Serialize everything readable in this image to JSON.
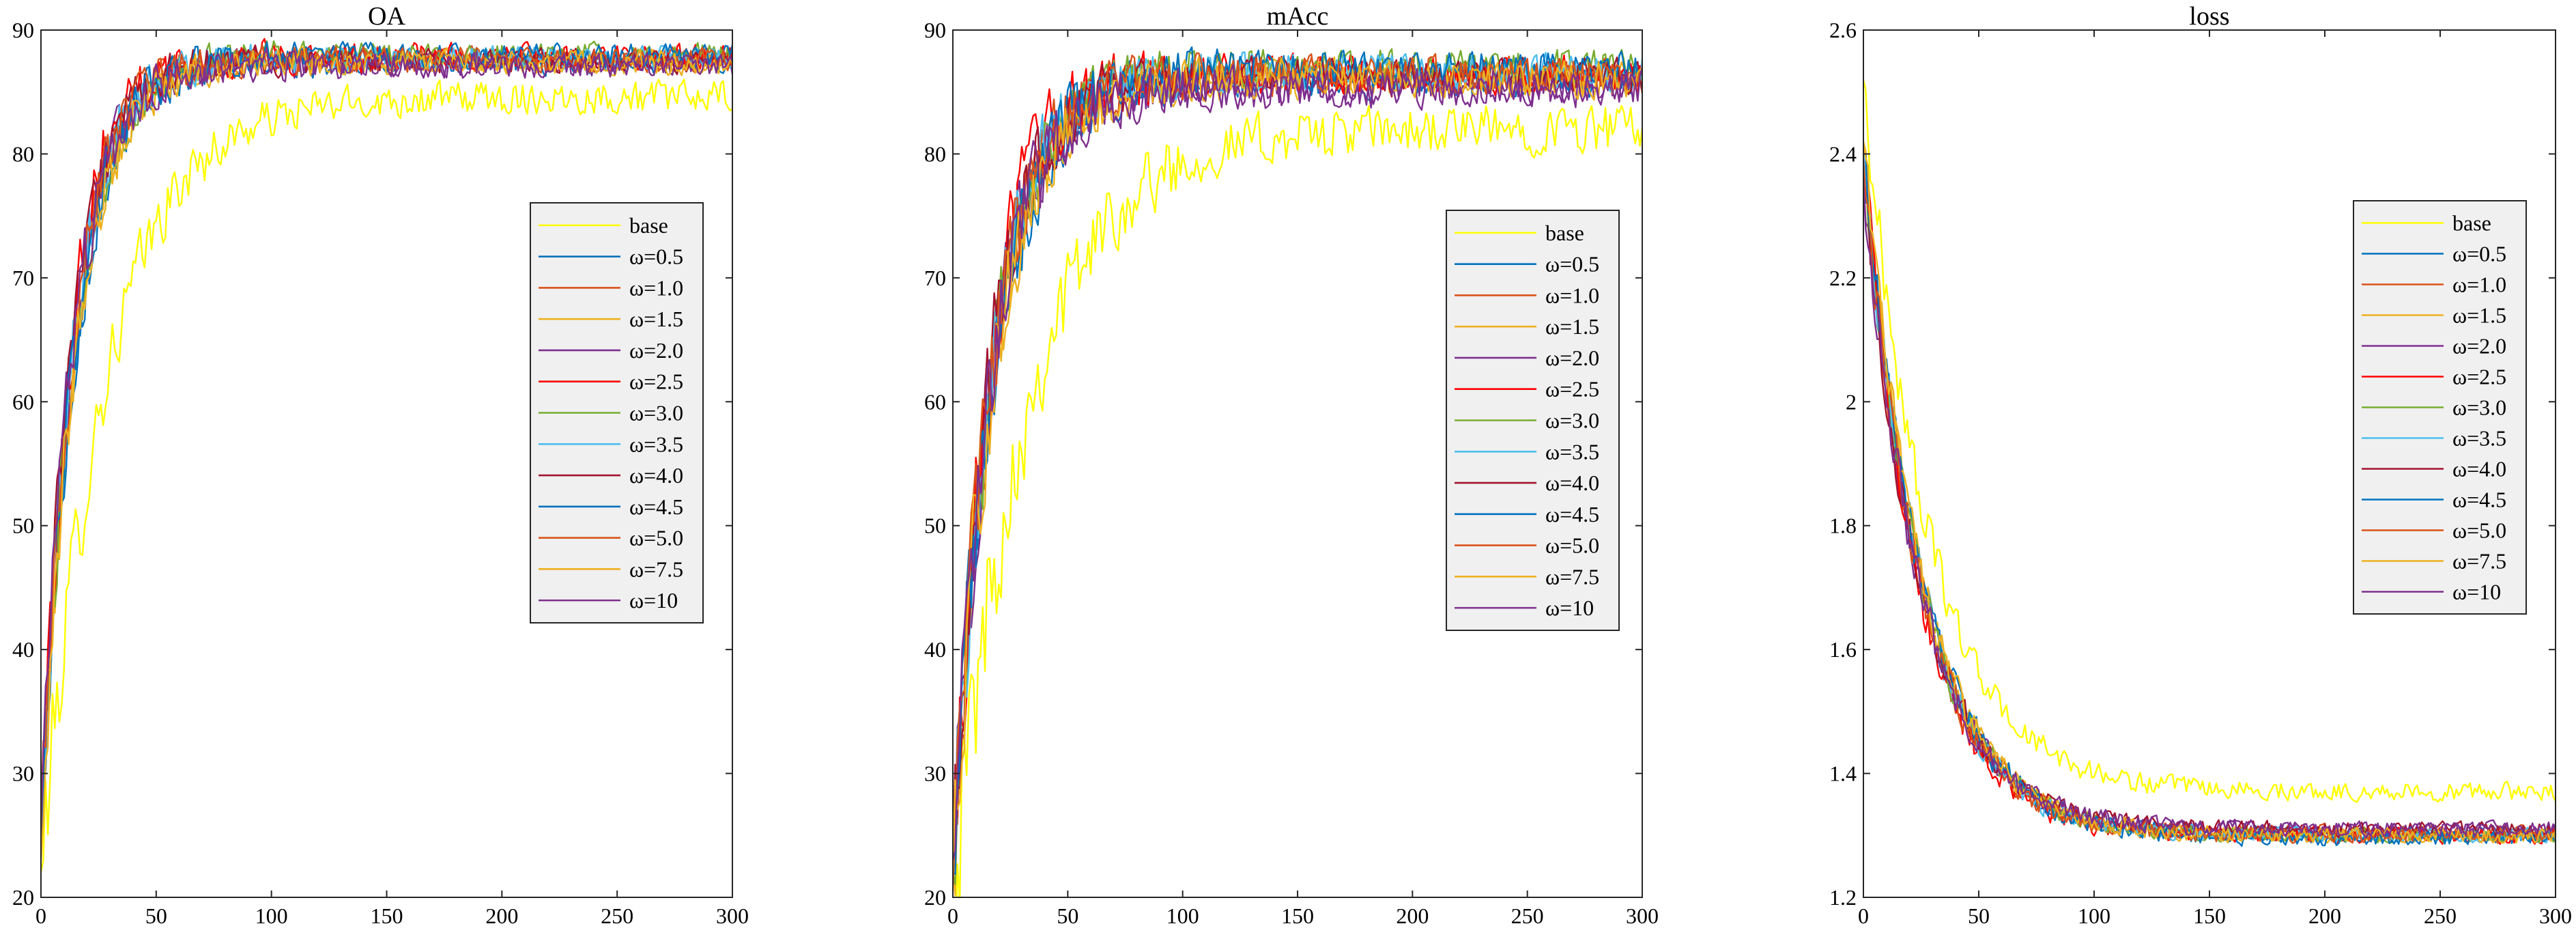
{
  "chart_data": [
    {
      "type": "line",
      "title": "OA",
      "xlabel": "",
      "ylabel": "",
      "xlim": [
        0,
        300
      ],
      "ylim": [
        20,
        90
      ],
      "xticks": [
        "0",
        "50",
        "100",
        "150",
        "200",
        "250",
        "300"
      ],
      "yticks": [
        "20",
        "30",
        "40",
        "50",
        "60",
        "70",
        "80",
        "90"
      ],
      "grid": false,
      "legend_position": "center-right",
      "series": [
        {
          "name": "base",
          "color": "#FFFF00",
          "noise": 1.6,
          "start": 22,
          "plateau": 84.6,
          "tau": 28,
          "epochs": 300
        },
        {
          "name": "ω=0.5",
          "color": "#0072BD",
          "noise": 1.2,
          "start": 24,
          "plateau": 87.4,
          "tau": 15,
          "epochs": 300
        },
        {
          "name": "ω=1.0",
          "color": "#D95319",
          "noise": 1.2,
          "start": 25,
          "plateau": 87.6,
          "tau": 14,
          "epochs": 300
        },
        {
          "name": "ω=1.5",
          "color": "#EDB120",
          "noise": 1.2,
          "start": 23,
          "plateau": 87.5,
          "tau": 15,
          "epochs": 300
        },
        {
          "name": "ω=2.0",
          "color": "#7E2F8E",
          "noise": 1.2,
          "start": 26,
          "plateau": 87.2,
          "tau": 14,
          "epochs": 300
        },
        {
          "name": "ω=2.5",
          "color": "#FF0000",
          "noise": 1.3,
          "start": 24,
          "plateau": 87.8,
          "tau": 13,
          "epochs": 300
        },
        {
          "name": "ω=3.0",
          "color": "#77AC30",
          "noise": 1.2,
          "start": 25,
          "plateau": 88.0,
          "tau": 15,
          "epochs": 300
        },
        {
          "name": "ω=3.5",
          "color": "#4DBEEE",
          "noise": 1.2,
          "start": 24,
          "plateau": 87.7,
          "tau": 14,
          "epochs": 300
        },
        {
          "name": "ω=4.0",
          "color": "#A2142F",
          "noise": 1.2,
          "start": 27,
          "plateau": 87.5,
          "tau": 14,
          "epochs": 300
        },
        {
          "name": "ω=4.5",
          "color": "#0072BD",
          "noise": 1.2,
          "start": 24,
          "plateau": 87.9,
          "tau": 15,
          "epochs": 300
        },
        {
          "name": "ω=5.0",
          "color": "#D95319",
          "noise": 1.2,
          "start": 25,
          "plateau": 87.6,
          "tau": 14,
          "epochs": 300
        },
        {
          "name": "ω=7.5",
          "color": "#EDB120",
          "noise": 1.2,
          "start": 23,
          "plateau": 87.4,
          "tau": 15,
          "epochs": 300
        },
        {
          "name": "ω=10",
          "color": "#7E2F8E",
          "noise": 1.2,
          "start": 26,
          "plateau": 87.1,
          "tau": 14,
          "epochs": 300
        }
      ]
    },
    {
      "type": "line",
      "title": "mAcc",
      "xlabel": "",
      "ylabel": "",
      "xlim": [
        0,
        300
      ],
      "ylim": [
        20,
        90
      ],
      "xticks": [
        "0",
        "50",
        "100",
        "150",
        "200",
        "250",
        "300"
      ],
      "yticks": [
        "20",
        "30",
        "40",
        "50",
        "60",
        "70",
        "80",
        "90"
      ],
      "grid": false,
      "legend_position": "center-right",
      "series": [
        {
          "name": "base",
          "color": "#FFFF00",
          "noise": 2.4,
          "start": 20,
          "plateau": 82.0,
          "tau": 32,
          "epochs": 300
        },
        {
          "name": "ω=0.5",
          "color": "#0072BD",
          "noise": 1.8,
          "start": 22,
          "plateau": 86.0,
          "tau": 18,
          "epochs": 300
        },
        {
          "name": "ω=1.0",
          "color": "#D95319",
          "noise": 1.8,
          "start": 21,
          "plateau": 86.3,
          "tau": 17,
          "epochs": 300
        },
        {
          "name": "ω=1.5",
          "color": "#EDB120",
          "noise": 1.8,
          "start": 22,
          "plateau": 86.1,
          "tau": 18,
          "epochs": 300
        },
        {
          "name": "ω=2.0",
          "color": "#7E2F8E",
          "noise": 1.8,
          "start": 23,
          "plateau": 85.2,
          "tau": 17,
          "epochs": 300
        },
        {
          "name": "ω=2.5",
          "color": "#FF0000",
          "noise": 1.9,
          "start": 21,
          "plateau": 86.5,
          "tau": 16,
          "epochs": 300
        },
        {
          "name": "ω=3.0",
          "color": "#77AC30",
          "noise": 1.8,
          "start": 22,
          "plateau": 87.0,
          "tau": 18,
          "epochs": 300
        },
        {
          "name": "ω=3.5",
          "color": "#4DBEEE",
          "noise": 1.8,
          "start": 22,
          "plateau": 86.6,
          "tau": 17,
          "epochs": 300
        },
        {
          "name": "ω=4.0",
          "color": "#A2142F",
          "noise": 1.8,
          "start": 24,
          "plateau": 86.2,
          "tau": 17,
          "epochs": 300
        },
        {
          "name": "ω=4.5",
          "color": "#0072BD",
          "noise": 1.8,
          "start": 22,
          "plateau": 86.8,
          "tau": 18,
          "epochs": 300
        },
        {
          "name": "ω=5.0",
          "color": "#D95319",
          "noise": 1.8,
          "start": 21,
          "plateau": 86.4,
          "tau": 17,
          "epochs": 300
        },
        {
          "name": "ω=7.5",
          "color": "#EDB120",
          "noise": 1.8,
          "start": 22,
          "plateau": 86.0,
          "tau": 18,
          "epochs": 300
        },
        {
          "name": "ω=10",
          "color": "#7E2F8E",
          "noise": 1.8,
          "start": 23,
          "plateau": 85.5,
          "tau": 17,
          "epochs": 300
        }
      ]
    },
    {
      "type": "line",
      "title": "loss",
      "xlabel": "",
      "ylabel": "",
      "xlim": [
        0,
        300
      ],
      "ylim": [
        1.2,
        2.6
      ],
      "xticks": [
        "0",
        "50",
        "100",
        "150",
        "200",
        "250",
        "300"
      ],
      "yticks": [
        "1.2",
        "1.4",
        "1.6",
        "1.8",
        "2",
        "2.2",
        "2.4",
        "2.6"
      ],
      "grid": false,
      "legend_position": "top-right",
      "series": [
        {
          "name": "base",
          "color": "#FFFF00",
          "noise": 0.018,
          "start": 2.52,
          "plateau": 1.37,
          "tau": 28,
          "epochs": 300
        },
        {
          "name": "ω=0.5",
          "color": "#0072BD",
          "noise": 0.015,
          "start": 2.4,
          "plateau": 1.3,
          "tau": 26,
          "epochs": 300
        },
        {
          "name": "ω=1.0",
          "color": "#D95319",
          "noise": 0.015,
          "start": 2.38,
          "plateau": 1.305,
          "tau": 25,
          "epochs": 300
        },
        {
          "name": "ω=1.5",
          "color": "#EDB120",
          "noise": 0.015,
          "start": 2.42,
          "plateau": 1.3,
          "tau": 26,
          "epochs": 300
        },
        {
          "name": "ω=2.0",
          "color": "#7E2F8E",
          "noise": 0.015,
          "start": 2.36,
          "plateau": 1.31,
          "tau": 25,
          "epochs": 300
        },
        {
          "name": "ω=2.5",
          "color": "#FF0000",
          "noise": 0.016,
          "start": 2.4,
          "plateau": 1.3,
          "tau": 24,
          "epochs": 300
        },
        {
          "name": "ω=3.0",
          "color": "#77AC30",
          "noise": 0.015,
          "start": 2.38,
          "plateau": 1.3,
          "tau": 26,
          "epochs": 300
        },
        {
          "name": "ω=3.5",
          "color": "#4DBEEE",
          "noise": 0.015,
          "start": 2.41,
          "plateau": 1.3,
          "tau": 25,
          "epochs": 300
        },
        {
          "name": "ω=4.0",
          "color": "#A2142F",
          "noise": 0.015,
          "start": 2.37,
          "plateau": 1.31,
          "tau": 25,
          "epochs": 300
        },
        {
          "name": "ω=4.5",
          "color": "#0072BD",
          "noise": 0.015,
          "start": 2.4,
          "plateau": 1.295,
          "tau": 26,
          "epochs": 300
        },
        {
          "name": "ω=5.0",
          "color": "#D95319",
          "noise": 0.015,
          "start": 2.39,
          "plateau": 1.3,
          "tau": 25,
          "epochs": 300
        },
        {
          "name": "ω=7.5",
          "color": "#EDB120",
          "noise": 0.015,
          "start": 2.42,
          "plateau": 1.3,
          "tau": 26,
          "epochs": 300
        },
        {
          "name": "ω=10",
          "color": "#7E2F8E",
          "noise": 0.015,
          "start": 2.36,
          "plateau": 1.31,
          "tau": 25,
          "epochs": 300
        }
      ]
    }
  ]
}
